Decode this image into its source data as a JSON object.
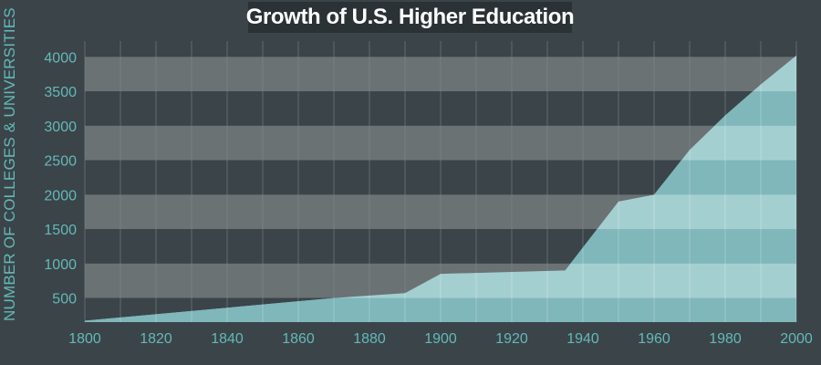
{
  "chart_data": {
    "type": "area",
    "title": "Growth of U.S. Higher Education",
    "xlabel": "",
    "ylabel": "NUMBER OF COLLEGES & UNIVERSITIES",
    "xlim": [
      1800,
      2000
    ],
    "ylim": [
      150,
      4150
    ],
    "x_ticks": [
      "1800",
      "1820",
      "1840",
      "1860",
      "1880",
      "1900",
      "1920",
      "1940",
      "1960",
      "1980",
      "2000"
    ],
    "y_ticks": [
      "500",
      "1000",
      "1500",
      "2000",
      "2500",
      "3000",
      "3500",
      "4000"
    ],
    "grid": true,
    "series": [
      {
        "name": "",
        "x": [
          1800,
          1870,
          1890,
          1900,
          1935,
          1950,
          1960,
          1970,
          1980,
          1990,
          2000
        ],
        "y": [
          170,
          500,
          570,
          850,
          900,
          1900,
          2000,
          2650,
          3150,
          3600,
          4020
        ]
      }
    ],
    "colors": {
      "background": "#3b4449",
      "band_light": "#6b7274",
      "band_dark": "#3b4449",
      "area_light": "#a4cfd1",
      "area_dark": "#7fb7ba",
      "accent": "#63b9b8",
      "gridline": "#7f8a8d"
    }
  }
}
